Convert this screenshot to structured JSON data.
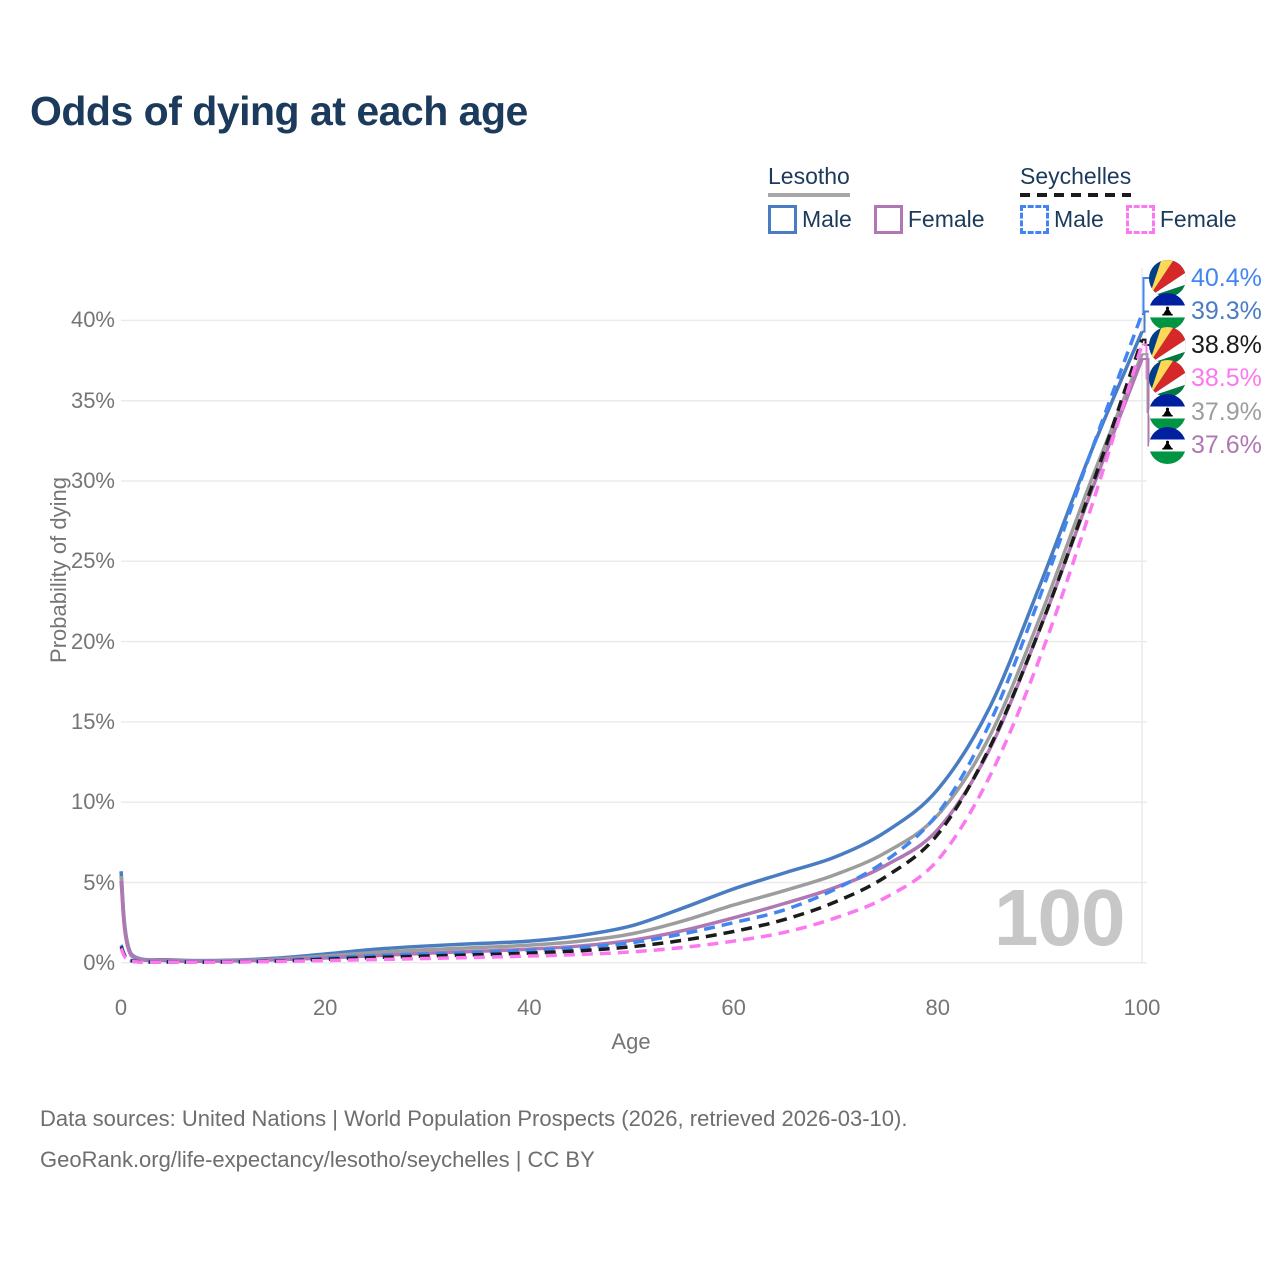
{
  "title": "Odds of dying at each age",
  "watermark": "100",
  "legend": {
    "groups": [
      {
        "title": "Lesotho",
        "underline": "solid",
        "underline_color": "#a6a6a6",
        "items": [
          {
            "label": "Male",
            "color": "#4a7cc2",
            "dash": false
          },
          {
            "label": "Female",
            "color": "#b077b3",
            "dash": false
          }
        ]
      },
      {
        "title": "Seychelles",
        "underline": "dashed",
        "underline_color": "#1b1b1b",
        "items": [
          {
            "label": "Male",
            "color": "#4186f0",
            "dash": true
          },
          {
            "label": "Female",
            "color": "#fb78f0",
            "dash": true
          }
        ]
      }
    ]
  },
  "axes": {
    "xlabel": "Age",
    "ylabel": "Probability of dying",
    "x_ticks": [
      0,
      20,
      40,
      60,
      80,
      100
    ],
    "y_ticks": [
      "0%",
      "5%",
      "10%",
      "15%",
      "20%",
      "25%",
      "30%",
      "35%",
      "40%"
    ]
  },
  "chart_data": {
    "type": "line",
    "title": "Odds of dying at each age",
    "xlabel": "Age",
    "ylabel": "Probability of dying",
    "unit": "percent",
    "ylim": [
      0,
      42
    ],
    "xlim": [
      0,
      100
    ],
    "grid": "horizontal",
    "x": [
      0,
      1,
      5,
      10,
      15,
      20,
      25,
      30,
      35,
      40,
      45,
      50,
      55,
      60,
      65,
      70,
      75,
      80,
      85,
      90,
      95,
      100
    ],
    "series": [
      {
        "name": "Lesotho Male",
        "country": "Lesotho",
        "sex": "Male",
        "style": "solid",
        "color": "#4a7cc2",
        "values": [
          5.7,
          0.55,
          0.18,
          0.15,
          0.28,
          0.55,
          0.85,
          1.05,
          1.2,
          1.35,
          1.7,
          2.3,
          3.4,
          4.6,
          5.6,
          6.6,
          8.2,
          10.8,
          15.8,
          23.5,
          31.8,
          39.3
        ],
        "end_label": "39.3%"
      },
      {
        "name": "Lesotho Total",
        "country": "Lesotho",
        "sex": "Both",
        "style": "solid",
        "color": "#9d9d9d",
        "values": [
          5.4,
          0.5,
          0.15,
          0.13,
          0.22,
          0.42,
          0.65,
          0.82,
          0.95,
          1.1,
          1.35,
          1.8,
          2.6,
          3.6,
          4.5,
          5.5,
          6.9,
          9.2,
          14.0,
          21.5,
          30.0,
          37.9
        ],
        "end_label": "37.9%"
      },
      {
        "name": "Lesotho Female",
        "country": "Lesotho",
        "sex": "Female",
        "style": "solid",
        "color": "#b077b3",
        "values": [
          5.1,
          0.45,
          0.13,
          0.11,
          0.18,
          0.3,
          0.45,
          0.6,
          0.72,
          0.85,
          1.05,
          1.4,
          2.0,
          2.8,
          3.7,
          4.7,
          6.1,
          8.3,
          13.2,
          20.8,
          29.3,
          37.6
        ],
        "end_label": "37.6%"
      },
      {
        "name": "Seychelles Male",
        "country": "Seychelles",
        "sex": "Male",
        "style": "dashed",
        "color": "#4186f0",
        "values": [
          1.1,
          0.15,
          0.06,
          0.06,
          0.13,
          0.3,
          0.45,
          0.55,
          0.65,
          0.78,
          0.95,
          1.25,
          1.8,
          2.5,
          3.3,
          4.6,
          6.4,
          9.3,
          14.8,
          22.8,
          31.8,
          40.4
        ],
        "end_label": "40.4%"
      },
      {
        "name": "Seychelles Total",
        "country": "Seychelles",
        "sex": "Both",
        "style": "dashed",
        "color": "#1b1b1b",
        "values": [
          1.0,
          0.12,
          0.05,
          0.05,
          0.1,
          0.22,
          0.33,
          0.42,
          0.5,
          0.6,
          0.75,
          1.0,
          1.4,
          1.95,
          2.7,
          3.8,
          5.4,
          8.0,
          13.3,
          20.8,
          29.5,
          38.8
        ],
        "end_label": "38.8%"
      },
      {
        "name": "Seychelles Female",
        "country": "Seychelles",
        "sex": "Female",
        "style": "dashed",
        "color": "#fb78f0",
        "values": [
          0.9,
          0.1,
          0.04,
          0.04,
          0.08,
          0.14,
          0.2,
          0.27,
          0.34,
          0.42,
          0.52,
          0.68,
          0.95,
          1.35,
          1.9,
          2.8,
          4.1,
          6.4,
          11.5,
          19.0,
          28.3,
          38.5
        ],
        "end_label": "38.5%"
      }
    ]
  },
  "end_labels": [
    {
      "value": "40.4%",
      "flag": "seychelles",
      "series": "Seychelles Male",
      "color": "#4186f0"
    },
    {
      "value": "39.3%",
      "flag": "lesotho",
      "series": "Lesotho Male",
      "color": "#4a7cc2"
    },
    {
      "value": "38.8%",
      "flag": "seychelles",
      "series": "Seychelles Total",
      "color": "#1b1b1b"
    },
    {
      "value": "38.5%",
      "flag": "seychelles",
      "series": "Seychelles Female",
      "color": "#fb78f0"
    },
    {
      "value": "37.9%",
      "flag": "lesotho",
      "series": "Lesotho Total",
      "color": "#9d9d9d"
    },
    {
      "value": "37.6%",
      "flag": "lesotho",
      "series": "Lesotho Female",
      "color": "#b077b3"
    }
  ],
  "footer": {
    "line1": "Data sources: United Nations | World Population Prospects (2026, retrieved 2026-03-10).",
    "line2": "GeoRank.org/life-expectancy/lesotho/seychelles | CC BY"
  },
  "colors": {
    "title_text": "#1c3a5c",
    "axis_text": "#757575",
    "grid": "#ebebeb",
    "watermark": "#c7c7c7",
    "footer_text": "#6e6e6e"
  },
  "flags": {
    "lesotho": {
      "blue": "#00209F",
      "white": "#FFFFFF",
      "green": "#009543",
      "hat": "#000000"
    },
    "seychelles": {
      "blue": "#003F87",
      "yellow": "#FCD856",
      "red": "#D62828",
      "white": "#FFFFFF",
      "green": "#007A3D"
    }
  }
}
